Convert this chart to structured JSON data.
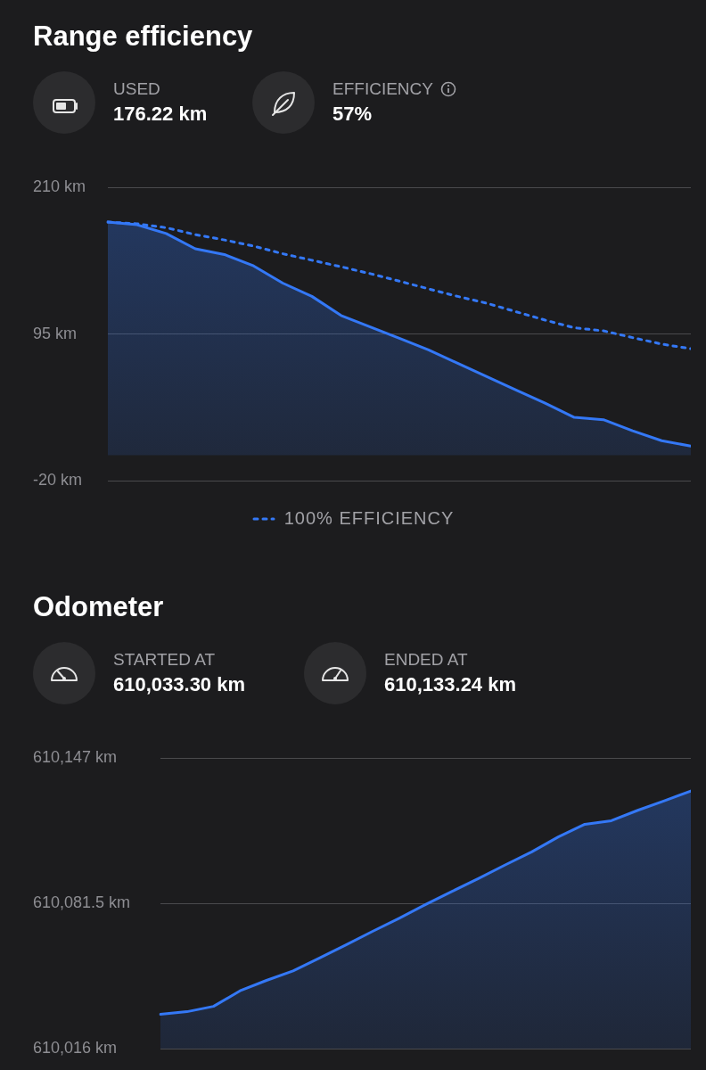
{
  "chart_data": [
    {
      "type": "area",
      "title": "Range efficiency",
      "annotations": [
        "USED",
        "176.22 km",
        "EFFICIENCY",
        "57%"
      ],
      "categories": [
        null,
        null,
        null,
        null,
        null,
        null,
        null,
        null,
        null,
        null,
        null,
        null,
        null,
        null,
        null,
        null,
        null,
        null,
        null,
        null,
        null
      ],
      "series": [
        {
          "color": "#3478f6",
          "values": [
            182.7,
            180.6,
            173.8,
            161.8,
            157.3,
            148.4,
            134.9,
            124.5,
            109.5,
            100.5,
            91.6,
            82.6,
            72.1,
            61.7,
            51.2,
            40.8,
            29.7,
            27.9,
            19.2,
            11.4,
            7.2
          ]
        },
        {
          "type": "line",
          "name": "100% EFFICIENCY",
          "color": "#3478f6",
          "line_style": "dotted",
          "values": [
            182.7,
            181.4,
            178.3,
            172.9,
            168.7,
            163.9,
            157.9,
            152.8,
            147.7,
            142.3,
            136.4,
            130.4,
            124.5,
            119.1,
            112.5,
            105.9,
            99.9,
            97.5,
            92.2,
            87.1,
            83.5
          ]
        }
      ],
      "ylim": [
        -20,
        210
      ],
      "yticks": [
        {
          "value": -20,
          "label": "-20 km"
        },
        {
          "value": 95,
          "label": "95 km"
        },
        {
          "value": 210,
          "label": "210 km"
        }
      ],
      "grid": "y",
      "legend": "bottom",
      "tick_labels": "y"
    },
    {
      "type": "area",
      "title": "Odometer",
      "annotations": [
        "STARTED AT",
        "610,033.30 km",
        "ENDED AT",
        "610,133.24 km"
      ],
      "categories": [
        null,
        null,
        null,
        null,
        null,
        null,
        null,
        null,
        null,
        null,
        null,
        null,
        null,
        null,
        null,
        null,
        null,
        null,
        null,
        null,
        null
      ],
      "series": [
        {
          "color": "#3478f6",
          "values": [
            610031.5,
            610032.7,
            610035.1,
            610042.1,
            610046.8,
            610051.1,
            610056.9,
            610062.8,
            610068.9,
            610074.8,
            610081.0,
            610086.9,
            610092.7,
            610098.8,
            610104.7,
            610111.4,
            610117.1,
            610118.7,
            610123.4,
            610127.7,
            610132.1
          ]
        }
      ],
      "ylim": [
        610016,
        610147
      ],
      "yticks": [
        {
          "value": 610016,
          "label": "610,016 km"
        },
        {
          "value": 610081.5,
          "label": "610,081.5 km"
        },
        {
          "value": 610147,
          "label": "610,147 km"
        }
      ],
      "grid": "y",
      "tick_labels": "y"
    }
  ]
}
